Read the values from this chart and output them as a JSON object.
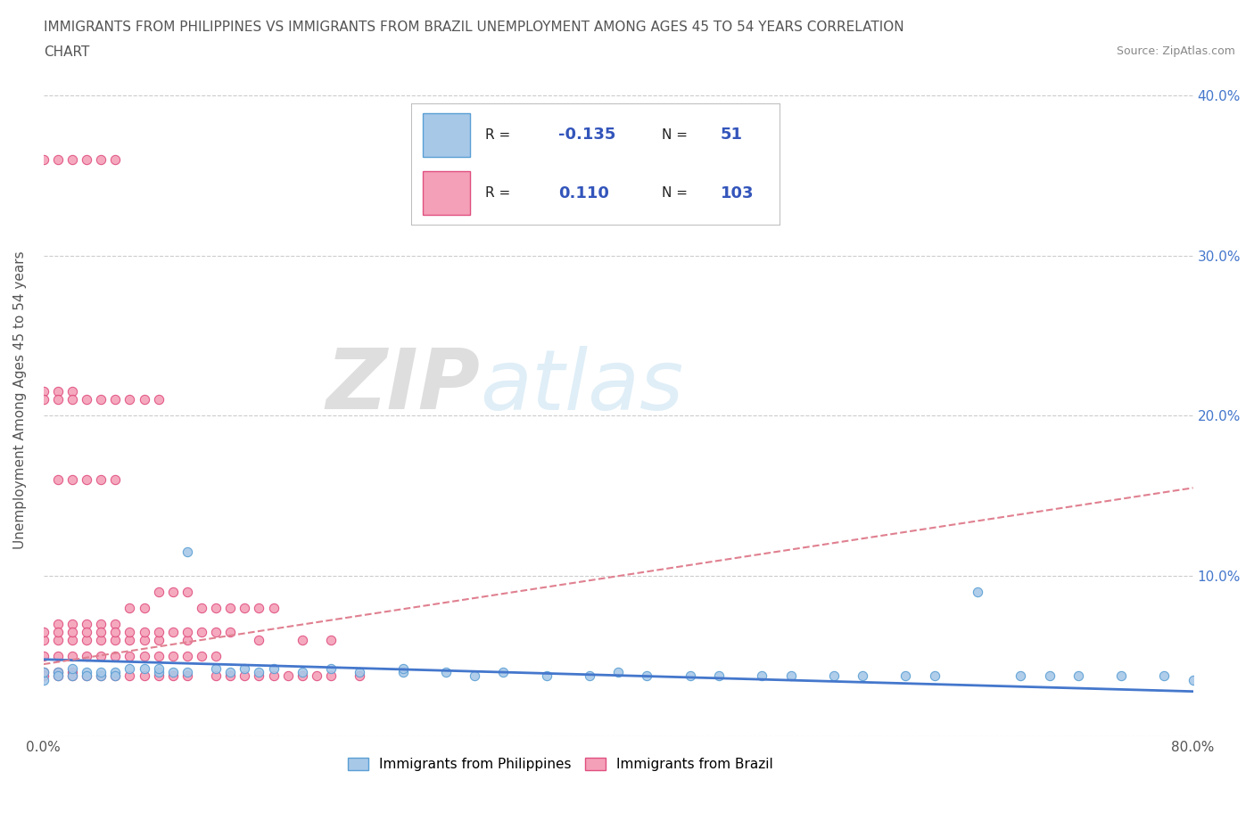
{
  "title_line1": "IMMIGRANTS FROM PHILIPPINES VS IMMIGRANTS FROM BRAZIL UNEMPLOYMENT AMONG AGES 45 TO 54 YEARS CORRELATION",
  "title_line2": "CHART",
  "source": "Source: ZipAtlas.com",
  "ylabel": "Unemployment Among Ages 45 to 54 years",
  "xlim": [
    0.0,
    0.8
  ],
  "ylim": [
    0.0,
    0.42
  ],
  "xticks": [
    0.0,
    0.1,
    0.2,
    0.3,
    0.4,
    0.5,
    0.6,
    0.7,
    0.8
  ],
  "xticklabels": [
    "0.0%",
    "",
    "",
    "",
    "",
    "",
    "",
    "",
    "80.0%"
  ],
  "ytick_positions": [
    0.0,
    0.1,
    0.2,
    0.3,
    0.4
  ],
  "ytick_labels_left": [
    "",
    "",
    "",
    "",
    ""
  ],
  "ytick_labels_right": [
    "",
    "10.0%",
    "20.0%",
    "30.0%",
    "40.0%"
  ],
  "background_color": "#ffffff",
  "philippines_color": "#a8c8e8",
  "brazil_color": "#f4a0b8",
  "philippines_edge_color": "#5a9fd4",
  "brazil_edge_color": "#e05080",
  "philippines_line_color": "#4477cc",
  "brazil_line_color": "#e08090",
  "R_philippines": -0.135,
  "N_philippines": 51,
  "R_brazil": 0.11,
  "N_brazil": 103,
  "legend_text_color": "#3355bb",
  "grid_color": "#cccccc",
  "title_color": "#555555",
  "ylabel_color": "#555555",
  "tick_color": "#555555",
  "right_tick_color": "#4477cc",
  "watermark_color": "#d8eaf5",
  "philippines_scatter_x": [
    0.0,
    0.0,
    0.01,
    0.01,
    0.02,
    0.02,
    0.03,
    0.03,
    0.04,
    0.04,
    0.05,
    0.05,
    0.06,
    0.07,
    0.08,
    0.08,
    0.09,
    0.1,
    0.1,
    0.12,
    0.13,
    0.14,
    0.15,
    0.16,
    0.18,
    0.2,
    0.22,
    0.25,
    0.25,
    0.28,
    0.3,
    0.32,
    0.35,
    0.38,
    0.4,
    0.42,
    0.45,
    0.47,
    0.5,
    0.52,
    0.55,
    0.57,
    0.6,
    0.62,
    0.65,
    0.68,
    0.7,
    0.72,
    0.75,
    0.78,
    0.8
  ],
  "philippines_scatter_y": [
    0.035,
    0.04,
    0.04,
    0.038,
    0.038,
    0.042,
    0.04,
    0.038,
    0.038,
    0.04,
    0.04,
    0.038,
    0.042,
    0.042,
    0.04,
    0.042,
    0.04,
    0.115,
    0.04,
    0.042,
    0.04,
    0.042,
    0.04,
    0.042,
    0.04,
    0.042,
    0.04,
    0.04,
    0.042,
    0.04,
    0.038,
    0.04,
    0.038,
    0.038,
    0.04,
    0.038,
    0.038,
    0.038,
    0.038,
    0.038,
    0.038,
    0.038,
    0.038,
    0.038,
    0.09,
    0.038,
    0.038,
    0.038,
    0.038,
    0.038,
    0.035
  ],
  "brazil_scatter_x": [
    0.0,
    0.0,
    0.0,
    0.0,
    0.01,
    0.01,
    0.01,
    0.01,
    0.01,
    0.02,
    0.02,
    0.02,
    0.02,
    0.02,
    0.03,
    0.03,
    0.03,
    0.03,
    0.04,
    0.04,
    0.04,
    0.04,
    0.05,
    0.05,
    0.05,
    0.05,
    0.06,
    0.06,
    0.06,
    0.07,
    0.07,
    0.07,
    0.08,
    0.08,
    0.08,
    0.09,
    0.09,
    0.1,
    0.1,
    0.1,
    0.11,
    0.12,
    0.12,
    0.13,
    0.14,
    0.15,
    0.15,
    0.16,
    0.17,
    0.18,
    0.18,
    0.19,
    0.2,
    0.2,
    0.22,
    0.01,
    0.02,
    0.03,
    0.04,
    0.05,
    0.0,
    0.01,
    0.02,
    0.0,
    0.01,
    0.02,
    0.03,
    0.04,
    0.05,
    0.06,
    0.07,
    0.08,
    0.0,
    0.01,
    0.02,
    0.03,
    0.04,
    0.05,
    0.06,
    0.07,
    0.08,
    0.09,
    0.1,
    0.11,
    0.12,
    0.13,
    0.0,
    0.01,
    0.02,
    0.03,
    0.04,
    0.05,
    0.06,
    0.07,
    0.08,
    0.09,
    0.1,
    0.11,
    0.12,
    0.13,
    0.14,
    0.15,
    0.16
  ],
  "brazil_scatter_y": [
    0.04,
    0.05,
    0.06,
    0.038,
    0.04,
    0.05,
    0.06,
    0.07,
    0.038,
    0.04,
    0.05,
    0.06,
    0.07,
    0.038,
    0.05,
    0.06,
    0.07,
    0.038,
    0.05,
    0.06,
    0.07,
    0.038,
    0.05,
    0.06,
    0.07,
    0.038,
    0.05,
    0.06,
    0.038,
    0.05,
    0.06,
    0.038,
    0.05,
    0.06,
    0.038,
    0.05,
    0.038,
    0.05,
    0.06,
    0.038,
    0.05,
    0.038,
    0.05,
    0.038,
    0.038,
    0.038,
    0.06,
    0.038,
    0.038,
    0.038,
    0.06,
    0.038,
    0.038,
    0.06,
    0.038,
    0.16,
    0.16,
    0.16,
    0.16,
    0.16,
    0.215,
    0.215,
    0.215,
    0.21,
    0.21,
    0.21,
    0.21,
    0.21,
    0.21,
    0.21,
    0.21,
    0.21,
    0.065,
    0.065,
    0.065,
    0.065,
    0.065,
    0.065,
    0.065,
    0.065,
    0.065,
    0.065,
    0.065,
    0.065,
    0.065,
    0.065,
    0.36,
    0.36,
    0.36,
    0.36,
    0.36,
    0.36,
    0.08,
    0.08,
    0.09,
    0.09,
    0.09,
    0.08,
    0.08,
    0.08,
    0.08,
    0.08,
    0.08
  ],
  "phil_trend_x0": 0.0,
  "phil_trend_y0": 0.048,
  "phil_trend_x1": 0.8,
  "phil_trend_y1": 0.028,
  "braz_trend_x0": 0.0,
  "braz_trend_y0": 0.045,
  "braz_trend_x1": 0.8,
  "braz_trend_y1": 0.155
}
